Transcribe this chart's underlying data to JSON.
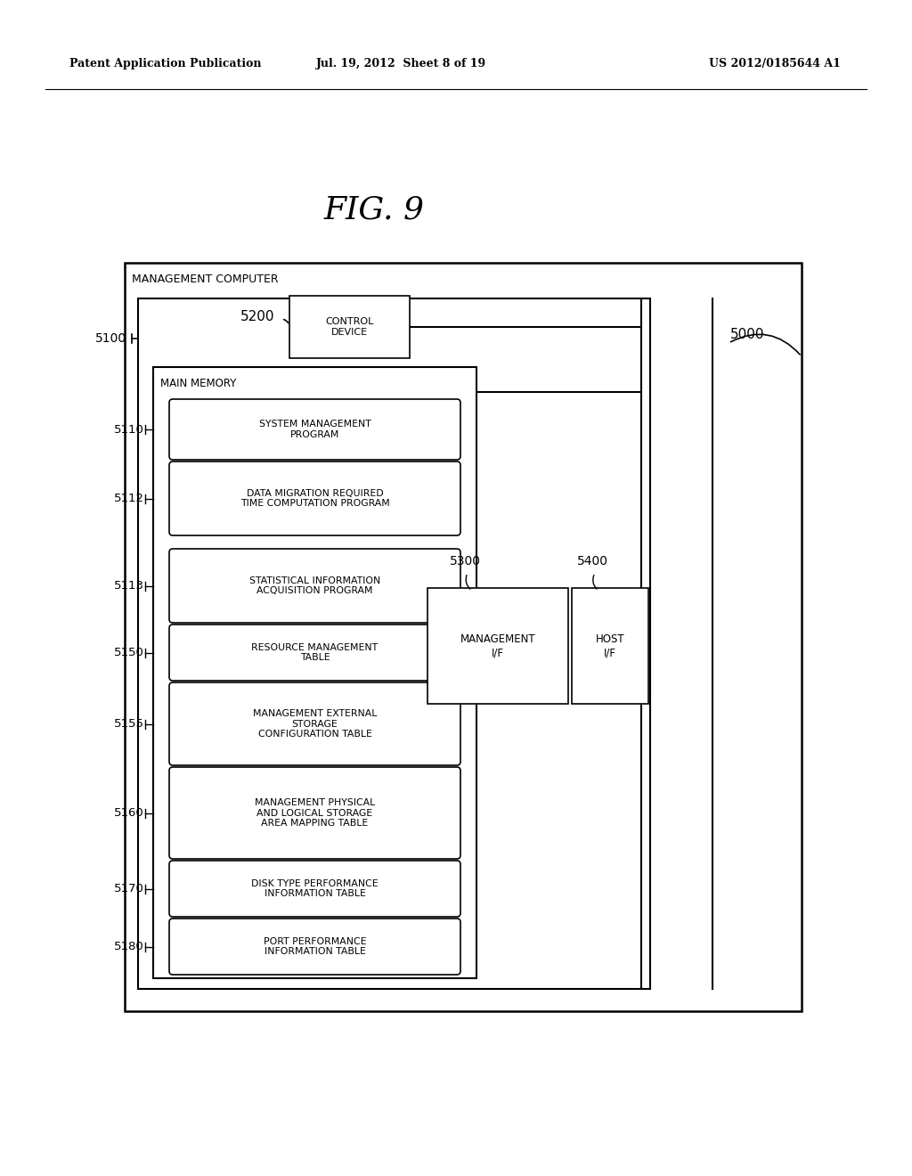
{
  "header_left": "Patent Application Publication",
  "header_mid": "Jul. 19, 2012  Sheet 8 of 19",
  "header_right": "US 2012/0185644 A1",
  "figure_title": "FIG. 9",
  "bg_color": "#ffffff",
  "outer_box_label": "MANAGEMENT COMPUTER",
  "outer_box_id": "5000",
  "main_box_id": "5100",
  "control_device_label": "CONTROL\nDEVICE",
  "control_device_id": "5200",
  "main_memory_label": "MAIN MEMORY",
  "boxes": [
    {
      "id": "5110",
      "label": "SYSTEM MANAGEMENT\nPROGRAM",
      "lines": 2
    },
    {
      "id": "5112",
      "label": "DATA MIGRATION REQUIRED\nTIME COMPUTATION PROGRAM",
      "lines": 2
    },
    {
      "id": "5113",
      "label": "STATISTICAL INFORMATION\nACQUISITION PROGRAM",
      "lines": 2
    },
    {
      "id": "5150",
      "label": "RESOURCE MANAGEMENT\nTABLE",
      "lines": 2
    },
    {
      "id": "5155",
      "label": "MANAGEMENT EXTERNAL\nSTORAGE\nCONFIGURATION TABLE",
      "lines": 3
    },
    {
      "id": "5160",
      "label": "MANAGEMENT PHYSICAL\nAND LOGICAL STORAGE\nAREA MAPPING TABLE",
      "lines": 3
    },
    {
      "id": "5170",
      "label": "DISK TYPE PERFORMANCE\nINFORMATION TABLE",
      "lines": 2
    },
    {
      "id": "5180",
      "label": "PORT PERFORMANCE\nINFORMATION TABLE",
      "lines": 2
    }
  ],
  "mgmt_if_id": "5300",
  "mgmt_if_label": "MANAGEMENT\nI/F",
  "host_if_id": "5400",
  "host_if_label": "HOST\nI/F"
}
